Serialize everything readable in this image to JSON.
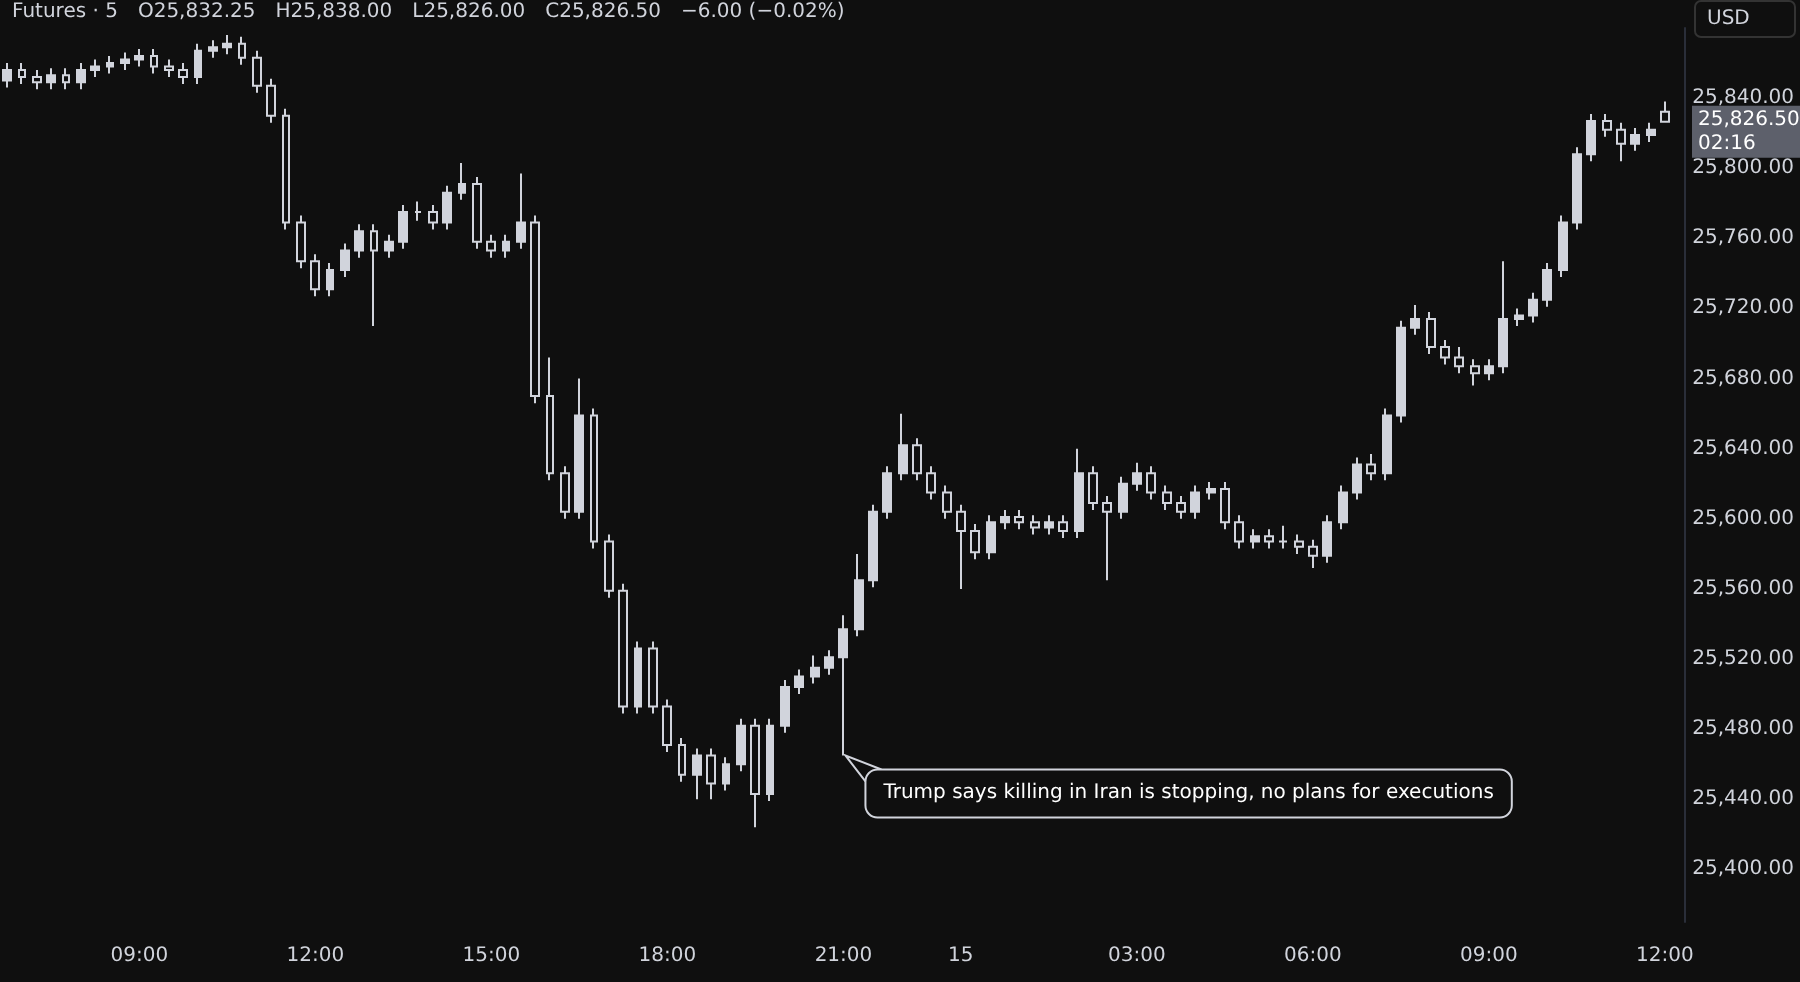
{
  "chart_data": {
    "type": "candlestick",
    "title": "Futures · 5",
    "ylabel": "USD",
    "annotations": [
      "O25,832.25",
      "H25,838.00",
      "L25,826.00",
      "C25,826.50",
      "−6.00 (−0.02%)",
      "25,826.50",
      "02:16",
      {
        "text": "Trump says killing in Iran is stopping, no plans for executions",
        "x": "21:00",
        "y": 25465
      }
    ],
    "categories": [
      null,
      null,
      null,
      null,
      null,
      null,
      null,
      null,
      null,
      "09:00",
      null,
      null,
      null,
      null,
      null,
      null,
      null,
      null,
      null,
      null,
      null,
      "12:00",
      null,
      null,
      null,
      null,
      null,
      null,
      null,
      null,
      null,
      null,
      null,
      "15:00",
      null,
      null,
      null,
      null,
      null,
      null,
      null,
      null,
      null,
      null,
      null,
      "18:00",
      null,
      null,
      null,
      null,
      null,
      null,
      null,
      null,
      null,
      null,
      null,
      "21:00",
      null,
      null,
      null,
      null,
      null,
      null,
      null,
      "15",
      null,
      null,
      null,
      null,
      null,
      null,
      null,
      null,
      null,
      null,
      null,
      "03:00",
      null,
      null,
      null,
      null,
      null,
      null,
      null,
      null,
      null,
      null,
      null,
      "06:00",
      null,
      null,
      null,
      null,
      null,
      null,
      null,
      null,
      null,
      null,
      null,
      "09:00",
      null,
      null,
      null,
      null,
      null,
      null,
      null,
      null,
      null,
      null,
      null,
      "12:00"
    ],
    "color": "#d1d4dc",
    "ohlc": [
      [
        25850,
        25860,
        25846,
        25856
      ],
      [
        25856,
        25860,
        25848,
        25852
      ],
      [
        25852,
        25856,
        25845,
        25849
      ],
      [
        25849,
        25857,
        25845,
        25853
      ],
      [
        25853,
        25857,
        25845,
        25849
      ],
      [
        25849,
        25860,
        25845,
        25856
      ],
      [
        25856,
        25862,
        25852,
        25858
      ],
      [
        25858,
        25864,
        25854,
        25860
      ],
      [
        25860,
        25866,
        25856,
        25862
      ],
      [
        25862,
        25868,
        25858,
        25864
      ],
      [
        25864,
        25868,
        25854,
        25858
      ],
      [
        25858,
        25862,
        25852,
        25856
      ],
      [
        25856,
        25860,
        25848,
        25852
      ],
      [
        25852,
        25871,
        25848,
        25867
      ],
      [
        25867,
        25873,
        25863,
        25869
      ],
      [
        25869,
        25876,
        25865,
        25871
      ],
      [
        25871,
        25875,
        25859,
        25863
      ],
      [
        25863,
        25867,
        25843,
        25847
      ],
      [
        25847,
        25851,
        25826,
        25830
      ],
      [
        25830,
        25834,
        25765,
        25769
      ],
      [
        25769,
        25773,
        25743,
        25747
      ],
      [
        25747,
        25751,
        25727,
        25731
      ],
      [
        25731,
        25746,
        25727,
        25742
      ],
      [
        25742,
        25757,
        25738,
        25753
      ],
      [
        25753,
        25768,
        25749,
        25764
      ],
      [
        25764,
        25768,
        25710,
        25753
      ],
      [
        25753,
        25762,
        25749,
        25758
      ],
      [
        25758,
        25779,
        25754,
        25775
      ],
      [
        25775,
        25781,
        25770,
        25775
      ],
      [
        25775,
        25779,
        25765,
        25769
      ],
      [
        25769,
        25790,
        25765,
        25786
      ],
      [
        25786,
        25803,
        25782,
        25791
      ],
      [
        25791,
        25795,
        25754,
        25758
      ],
      [
        25758,
        25762,
        25749,
        25753
      ],
      [
        25753,
        25762,
        25749,
        25758
      ],
      [
        25758,
        25797,
        25754,
        25769
      ],
      [
        25769,
        25773,
        25666,
        25670
      ],
      [
        25670,
        25692,
        25622,
        25626
      ],
      [
        25626,
        25630,
        25600,
        25604
      ],
      [
        25604,
        25680,
        25600,
        25659
      ],
      [
        25659,
        25663,
        25583,
        25587
      ],
      [
        25587,
        25591,
        25555,
        25559
      ],
      [
        25559,
        25563,
        25489,
        25493
      ],
      [
        25493,
        25530,
        25489,
        25526
      ],
      [
        25526,
        25530,
        25489,
        25493
      ],
      [
        25493,
        25497,
        25467,
        25471
      ],
      [
        25471,
        25475,
        25450,
        25454
      ],
      [
        25454,
        25469,
        25440,
        25465
      ],
      [
        25465,
        25469,
        25440,
        25449
      ],
      [
        25449,
        25464,
        25445,
        25460
      ],
      [
        25460,
        25486,
        25456,
        25482
      ],
      [
        25482,
        25486,
        25424,
        25443
      ],
      [
        25443,
        25486,
        25439,
        25482
      ],
      [
        25482,
        25508,
        25478,
        25504
      ],
      [
        25504,
        25514,
        25500,
        25510
      ],
      [
        25510,
        25522,
        25506,
        25515
      ],
      [
        25515,
        25525,
        25511,
        25521
      ],
      [
        25521,
        25545,
        25465,
        25537
      ],
      [
        25537,
        25580,
        25533,
        25565
      ],
      [
        25565,
        25608,
        25561,
        25604
      ],
      [
        25604,
        25630,
        25600,
        25626
      ],
      [
        25626,
        25660,
        25622,
        25642
      ],
      [
        25642,
        25646,
        25622,
        25626
      ],
      [
        25626,
        25630,
        25611,
        25615
      ],
      [
        25615,
        25619,
        25600,
        25604
      ],
      [
        25604,
        25608,
        25560,
        25593
      ],
      [
        25593,
        25597,
        25577,
        25581
      ],
      [
        25581,
        25602,
        25577,
        25598
      ],
      [
        25598,
        25605,
        25594,
        25601
      ],
      [
        25601,
        25605,
        25594,
        25598
      ],
      [
        25598,
        25602,
        25591,
        25595
      ],
      [
        25595,
        25602,
        25591,
        25598
      ],
      [
        25598,
        25602,
        25589,
        25593
      ],
      [
        25593,
        25640,
        25589,
        25626
      ],
      [
        25626,
        25630,
        25605,
        25609
      ],
      [
        25609,
        25613,
        25565,
        25604
      ],
      [
        25604,
        25624,
        25600,
        25620
      ],
      [
        25620,
        25632,
        25616,
        25626
      ],
      [
        25626,
        25630,
        25611,
        25615
      ],
      [
        25615,
        25619,
        25605,
        25609
      ],
      [
        25609,
        25613,
        25600,
        25604
      ],
      [
        25604,
        25619,
        25600,
        25615
      ],
      [
        25615,
        25621,
        25611,
        25617
      ],
      [
        25617,
        25621,
        25594,
        25598
      ],
      [
        25598,
        25602,
        25583,
        25587
      ],
      [
        25587,
        25594,
        25583,
        25590
      ],
      [
        25590,
        25594,
        25583,
        25587
      ],
      [
        25587,
        25596,
        25583,
        25587
      ],
      [
        25587,
        25591,
        25580,
        25584
      ],
      [
        25584,
        25588,
        25572,
        25579
      ],
      [
        25579,
        25602,
        25575,
        25598
      ],
      [
        25598,
        25619,
        25594,
        25615
      ],
      [
        25615,
        25635,
        25611,
        25631
      ],
      [
        25631,
        25637,
        25622,
        25626
      ],
      [
        25626,
        25663,
        25622,
        25659
      ],
      [
        25659,
        25713,
        25655,
        25709
      ],
      [
        25709,
        25722,
        25705,
        25714
      ],
      [
        25714,
        25718,
        25694,
        25698
      ],
      [
        25698,
        25702,
        25688,
        25692
      ],
      [
        25692,
        25698,
        25683,
        25687
      ],
      [
        25687,
        25691,
        25676,
        25683
      ],
      [
        25683,
        25691,
        25679,
        25687
      ],
      [
        25687,
        25747,
        25683,
        25714
      ],
      [
        25714,
        25720,
        25710,
        25716
      ],
      [
        25716,
        25729,
        25712,
        25725
      ],
      [
        25725,
        25746,
        25721,
        25742
      ],
      [
        25742,
        25773,
        25738,
        25769
      ],
      [
        25769,
        25812,
        25765,
        25808
      ],
      [
        25808,
        25831,
        25804,
        25827
      ],
      [
        25827,
        25831,
        25818,
        25822
      ],
      [
        25822,
        25826,
        25804,
        25814
      ],
      [
        25814,
        25823,
        25810,
        25819
      ],
      [
        25819,
        25826,
        25815,
        25822
      ],
      [
        25832.25,
        25838,
        25826,
        25826.5
      ]
    ],
    "ylim": [
      25370,
      25880
    ],
    "yticks": [
      {
        "value": 25400,
        "label": "25,400.00"
      },
      {
        "value": 25440,
        "label": "25,440.00"
      },
      {
        "value": 25480,
        "label": "25,480.00"
      },
      {
        "value": 25520,
        "label": "25,520.00"
      },
      {
        "value": 25560,
        "label": "25,560.00"
      },
      {
        "value": 25600,
        "label": "25,600.00"
      },
      {
        "value": 25640,
        "label": "25,640.00"
      },
      {
        "value": 25680,
        "label": "25,680.00"
      },
      {
        "value": 25720,
        "label": "25,720.00"
      },
      {
        "value": 25760,
        "label": "25,760.00"
      },
      {
        "value": 25800,
        "label": "25,800.00"
      },
      {
        "value": 25840,
        "label": "25,840.00"
      }
    ],
    "grid": false
  }
}
